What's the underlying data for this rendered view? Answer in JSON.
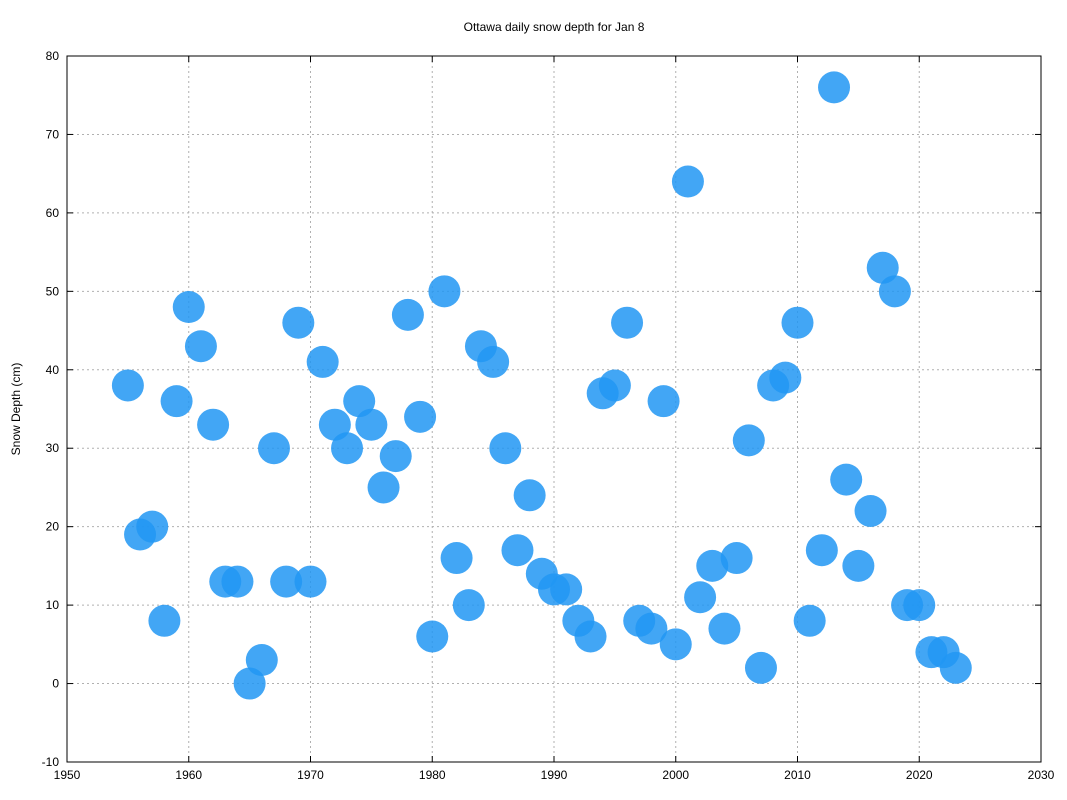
{
  "chart_data": {
    "type": "scatter",
    "title": "Ottawa daily snow depth for Jan 8",
    "xlabel": "",
    "ylabel": "Snow Depth (cm)",
    "xlim": [
      1950,
      2030
    ],
    "ylim": [
      -10,
      80
    ],
    "xticks": [
      "1950",
      "1960",
      "1970",
      "1980",
      "1990",
      "2000",
      "2010",
      "2020",
      "2030"
    ],
    "yticks": [
      "-10",
      "0",
      "10",
      "20",
      "30",
      "40",
      "50",
      "60",
      "70",
      "80"
    ],
    "grid": true,
    "marker_color": "#2196f3",
    "points": [
      {
        "x": 1955,
        "y": 38
      },
      {
        "x": 1956,
        "y": 19
      },
      {
        "x": 1957,
        "y": 20
      },
      {
        "x": 1958,
        "y": 8
      },
      {
        "x": 1959,
        "y": 36
      },
      {
        "x": 1960,
        "y": 48
      },
      {
        "x": 1961,
        "y": 43
      },
      {
        "x": 1962,
        "y": 33
      },
      {
        "x": 1963,
        "y": 13
      },
      {
        "x": 1964,
        "y": 13
      },
      {
        "x": 1965,
        "y": 0
      },
      {
        "x": 1966,
        "y": 3
      },
      {
        "x": 1967,
        "y": 30
      },
      {
        "x": 1968,
        "y": 13
      },
      {
        "x": 1969,
        "y": 46
      },
      {
        "x": 1970,
        "y": 13
      },
      {
        "x": 1971,
        "y": 41
      },
      {
        "x": 1972,
        "y": 33
      },
      {
        "x": 1973,
        "y": 30
      },
      {
        "x": 1974,
        "y": 36
      },
      {
        "x": 1975,
        "y": 33
      },
      {
        "x": 1976,
        "y": 25
      },
      {
        "x": 1977,
        "y": 29
      },
      {
        "x": 1978,
        "y": 47
      },
      {
        "x": 1979,
        "y": 34
      },
      {
        "x": 1980,
        "y": 6
      },
      {
        "x": 1981,
        "y": 50
      },
      {
        "x": 1982,
        "y": 16
      },
      {
        "x": 1983,
        "y": 10
      },
      {
        "x": 1984,
        "y": 43
      },
      {
        "x": 1985,
        "y": 41
      },
      {
        "x": 1986,
        "y": 30
      },
      {
        "x": 1987,
        "y": 17
      },
      {
        "x": 1988,
        "y": 24
      },
      {
        "x": 1989,
        "y": 14
      },
      {
        "x": 1990,
        "y": 12
      },
      {
        "x": 1991,
        "y": 12
      },
      {
        "x": 1992,
        "y": 8
      },
      {
        "x": 1993,
        "y": 6
      },
      {
        "x": 1994,
        "y": 37
      },
      {
        "x": 1995,
        "y": 38
      },
      {
        "x": 1996,
        "y": 46
      },
      {
        "x": 1997,
        "y": 8
      },
      {
        "x": 1998,
        "y": 7
      },
      {
        "x": 1999,
        "y": 36
      },
      {
        "x": 2000,
        "y": 5
      },
      {
        "x": 2001,
        "y": 64
      },
      {
        "x": 2002,
        "y": 11
      },
      {
        "x": 2003,
        "y": 15
      },
      {
        "x": 2004,
        "y": 7
      },
      {
        "x": 2005,
        "y": 16
      },
      {
        "x": 2006,
        "y": 31
      },
      {
        "x": 2007,
        "y": 2
      },
      {
        "x": 2008,
        "y": 38
      },
      {
        "x": 2009,
        "y": 39
      },
      {
        "x": 2010,
        "y": 46
      },
      {
        "x": 2011,
        "y": 8
      },
      {
        "x": 2012,
        "y": 17
      },
      {
        "x": 2013,
        "y": 76
      },
      {
        "x": 2014,
        "y": 26
      },
      {
        "x": 2015,
        "y": 15
      },
      {
        "x": 2016,
        "y": 22
      },
      {
        "x": 2017,
        "y": 53
      },
      {
        "x": 2018,
        "y": 50
      },
      {
        "x": 2019,
        "y": 10
      },
      {
        "x": 2020,
        "y": 10
      },
      {
        "x": 2021,
        "y": 4
      },
      {
        "x": 2022,
        "y": 4
      },
      {
        "x": 2023,
        "y": 2
      }
    ]
  }
}
